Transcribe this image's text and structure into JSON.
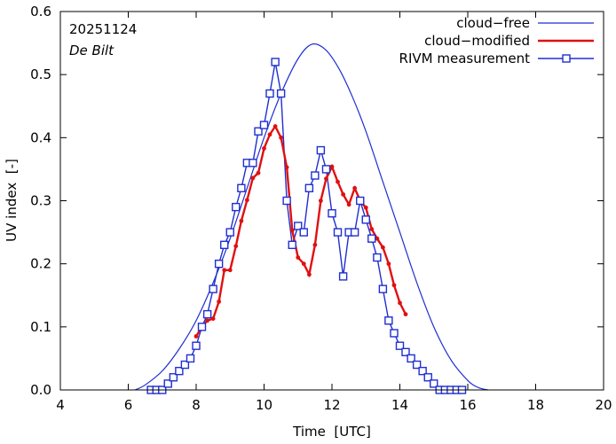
{
  "chart_data": {
    "type": "line",
    "date_label": "20251124",
    "location_label": "De Bilt",
    "xlabel": "Time  [UTC]",
    "ylabel": "UV index  [-]",
    "xlim": [
      4,
      20
    ],
    "ylim": [
      0,
      0.6
    ],
    "xticks": [
      4,
      6,
      8,
      10,
      12,
      14,
      16,
      18,
      20
    ],
    "yticks": [
      0.0,
      0.1,
      0.2,
      0.3,
      0.4,
      0.5,
      0.6
    ],
    "xtick_labels": [
      "4",
      "6",
      "8",
      "10",
      "12",
      "14",
      "16",
      "18",
      "20"
    ],
    "ytick_labels": [
      "0.0",
      "0.1",
      "0.2",
      "0.3",
      "0.4",
      "0.5",
      "0.6"
    ],
    "grid": false,
    "legend_position": "top-right",
    "colors": {
      "cloud_free": "#1f2fd0",
      "cloud_modified": "#e01010",
      "measurement": "#1f2fd0"
    },
    "series": [
      {
        "name": "cloud−free",
        "style": "line",
        "x": [
          6.2,
          6.5,
          7.0,
          7.5,
          8.0,
          8.5,
          9.0,
          9.5,
          10.0,
          10.5,
          11.0,
          11.4,
          11.8,
          12.2,
          12.6,
          13.0,
          13.5,
          14.0,
          14.5,
          15.0,
          15.5,
          16.0,
          16.3,
          16.6
        ],
        "y": [
          0.0,
          0.008,
          0.03,
          0.065,
          0.11,
          0.17,
          0.24,
          0.32,
          0.4,
          0.47,
          0.525,
          0.548,
          0.54,
          0.51,
          0.465,
          0.41,
          0.33,
          0.25,
          0.17,
          0.1,
          0.048,
          0.015,
          0.004,
          0.0
        ]
      },
      {
        "name": "cloud−modified",
        "style": "line-dots",
        "x": [
          8.0,
          8.17,
          8.33,
          8.5,
          8.67,
          8.83,
          9.0,
          9.17,
          9.33,
          9.5,
          9.67,
          9.83,
          10.0,
          10.17,
          10.33,
          10.5,
          10.67,
          10.83,
          11.0,
          11.17,
          11.33,
          11.5,
          11.67,
          11.83,
          12.0,
          12.17,
          12.33,
          12.5,
          12.67,
          12.83,
          13.0,
          13.17,
          13.33,
          13.5,
          13.67,
          13.83,
          14.0,
          14.17
        ],
        "y": [
          0.085,
          0.1,
          0.11,
          0.113,
          0.14,
          0.19,
          0.19,
          0.228,
          0.268,
          0.301,
          0.336,
          0.344,
          0.383,
          0.405,
          0.418,
          0.4,
          0.353,
          0.253,
          0.21,
          0.2,
          0.183,
          0.23,
          0.3,
          0.335,
          0.354,
          0.33,
          0.31,
          0.294,
          0.32,
          0.3,
          0.289,
          0.255,
          0.24,
          0.226,
          0.2,
          0.166,
          0.138,
          0.12
        ]
      },
      {
        "name": "RIVM measurement",
        "style": "line-squares",
        "x": [
          6.67,
          6.83,
          7.0,
          7.17,
          7.33,
          7.5,
          7.67,
          7.83,
          8.0,
          8.17,
          8.33,
          8.5,
          8.67,
          8.83,
          9.0,
          9.17,
          9.33,
          9.5,
          9.67,
          9.83,
          10.0,
          10.17,
          10.33,
          10.5,
          10.67,
          10.83,
          11.0,
          11.17,
          11.33,
          11.5,
          11.67,
          11.83,
          12.0,
          12.17,
          12.33,
          12.5,
          12.67,
          12.83,
          13.0,
          13.17,
          13.33,
          13.5,
          13.67,
          13.83,
          14.0,
          14.17,
          14.33,
          14.5,
          14.67,
          14.83,
          15.0,
          15.17,
          15.33,
          15.5,
          15.67,
          15.83
        ],
        "y": [
          0.0,
          0.0,
          0.0,
          0.01,
          0.02,
          0.03,
          0.04,
          0.05,
          0.07,
          0.1,
          0.12,
          0.16,
          0.2,
          0.23,
          0.25,
          0.29,
          0.32,
          0.36,
          0.36,
          0.41,
          0.42,
          0.47,
          0.52,
          0.47,
          0.3,
          0.23,
          0.26,
          0.25,
          0.32,
          0.34,
          0.38,
          0.35,
          0.28,
          0.25,
          0.18,
          0.25,
          0.25,
          0.3,
          0.27,
          0.24,
          0.21,
          0.16,
          0.11,
          0.09,
          0.07,
          0.06,
          0.05,
          0.04,
          0.03,
          0.02,
          0.01,
          0.0,
          0.0,
          0.0,
          0.0,
          0.0
        ]
      }
    ]
  }
}
